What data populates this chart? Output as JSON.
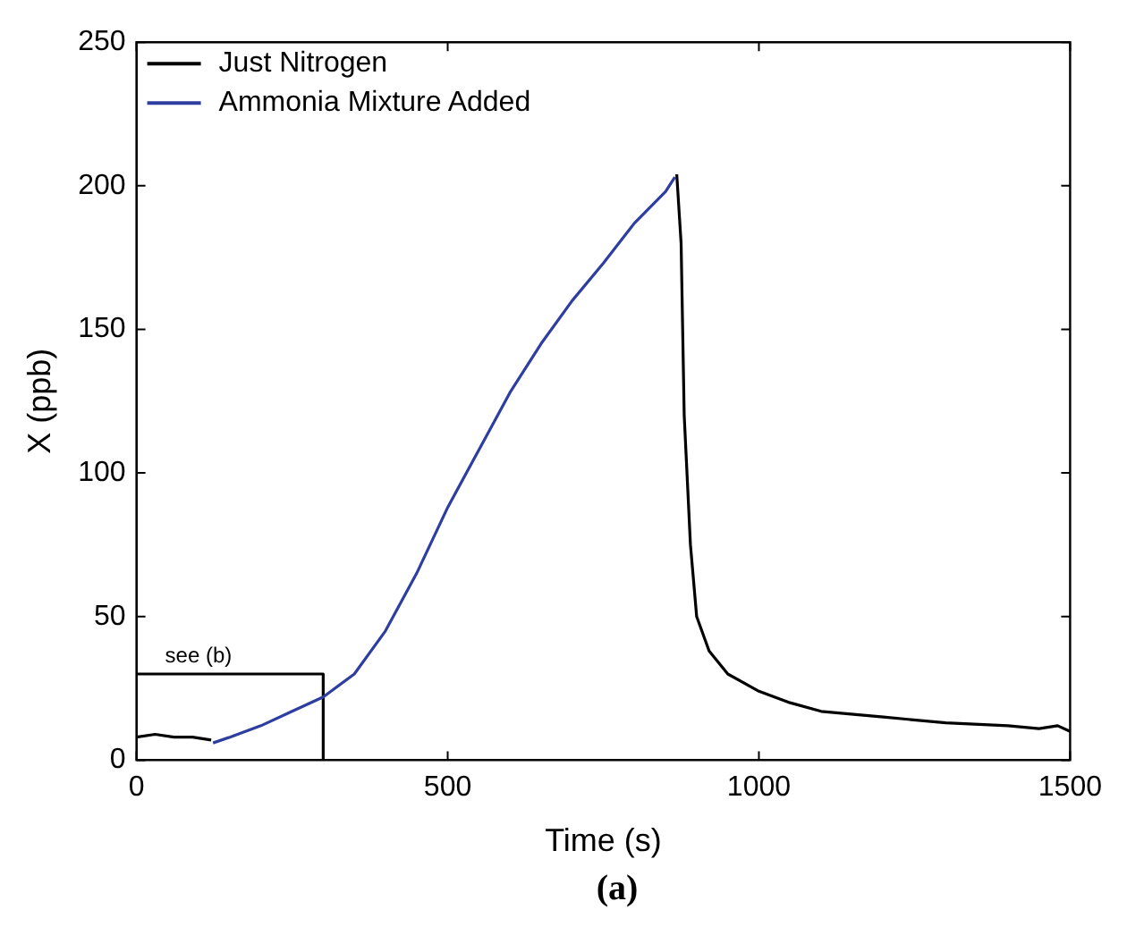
{
  "chart_data": {
    "type": "line",
    "xlabel": "Time (s)",
    "ylabel": "X (ppb)",
    "xlim": [
      0,
      1500
    ],
    "xticks": [
      0,
      500,
      1000,
      1500
    ],
    "ylim": [
      0,
      250
    ],
    "yticks": [
      0,
      50,
      100,
      150,
      200,
      250
    ],
    "grid": false,
    "legend": "top left",
    "marker": "none",
    "line_style": "solid",
    "series": [
      {
        "name": "Just Nitrogen",
        "color": "#000000",
        "x": [
          0,
          30,
          60,
          90,
          120,
          500,
          868,
          875,
          880,
          890,
          900,
          920,
          950,
          1000,
          1050,
          1100,
          1200,
          1300,
          1400,
          1450,
          1480,
          1500
        ],
        "values": [
          8,
          9,
          8,
          8,
          7,
          null,
          204,
          180,
          120,
          75,
          50,
          38,
          30,
          24,
          20,
          17,
          15,
          13,
          12,
          11,
          12,
          10
        ]
      },
      {
        "name": "Ammonia Mixture Added",
        "color": "#2e3ea0",
        "x": [
          123,
          150,
          200,
          250,
          300,
          350,
          400,
          450,
          500,
          550,
          600,
          650,
          700,
          750,
          800,
          850,
          865
        ],
        "values": [
          6,
          8,
          12,
          17,
          22,
          30,
          45,
          65,
          88,
          108,
          128,
          145,
          160,
          173,
          187,
          198,
          203
        ]
      },
      {
        "color": "#000000",
        "x": [
          0,
          300,
          300
        ],
        "values": [
          30,
          30,
          0
        ]
      }
    ],
    "annotations": [
      {
        "text": "see (b)",
        "x": 0,
        "y": 30
      },
      "(a)"
    ]
  }
}
